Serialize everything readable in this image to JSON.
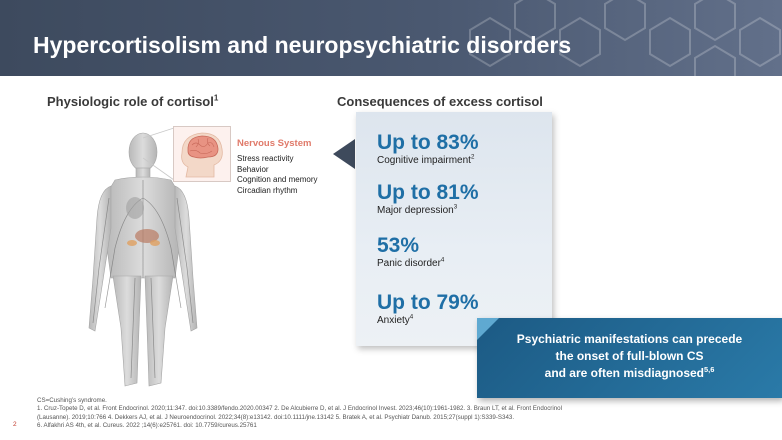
{
  "slide": {
    "title": "Hypercortisolism and neuropsychiatric disorders",
    "page_number": "2"
  },
  "left": {
    "subtitle": "Physiologic role of cortisol",
    "subtitle_ref": "1",
    "nervous_system": {
      "title": "Nervous System",
      "items": [
        "Stress reactivity",
        "Behavior",
        "Cognition and memory",
        "Circadian rhythm"
      ]
    }
  },
  "right": {
    "subtitle": "Consequences of excess cortisol",
    "stats": [
      {
        "value": "Up to 83%",
        "label": "Cognitive impairment",
        "ref": "2"
      },
      {
        "value": "Up to 81%",
        "label": "Major depression",
        "ref": "3"
      },
      {
        "value": "53%",
        "label": "Panic disorder",
        "ref": "4"
      },
      {
        "value": "Up to 79%",
        "label": "Anxiety",
        "ref": "4"
      }
    ]
  },
  "callout": {
    "line1": "Psychiatric manifestations can precede",
    "line2": "the onset of full-blown CS",
    "line3": "and are often misdiagnosed",
    "ref": "5,6"
  },
  "footer": {
    "abbreviation": "CS=Cushing’s syndrome.",
    "ref_line1": "1. Cruz-Topete D, et al. Front Endocrinol. 2020;11:347. doi:10.3389/fendo.2020.00347 2. De Alcubierre D, et al. J Endocrinol Invest. 2023;46(10):1961-1982. 3. Braun LT, et al. Front Endocrinol",
    "ref_line2": "(Lausanne). 2019;10:766 4. Dekkers AJ, et al. J Neuroendocrinol. 2022;34(8):e13142. doi:10.1111/jne.13142 5. Bratek A, et al. Psychiatr Danub. 2015;27(suppl 1):S339-S343.",
    "ref_line3": "6. Alfakhri AS 4th, et al. Cureus. 2022 ;14(6):e25761. doi: 10.7759/cureus.25761"
  },
  "colors": {
    "header": "#4a5870",
    "stat_value": "#1f6fa6",
    "nervous_title": "#e07a6a",
    "callout": "#1c5a84"
  }
}
